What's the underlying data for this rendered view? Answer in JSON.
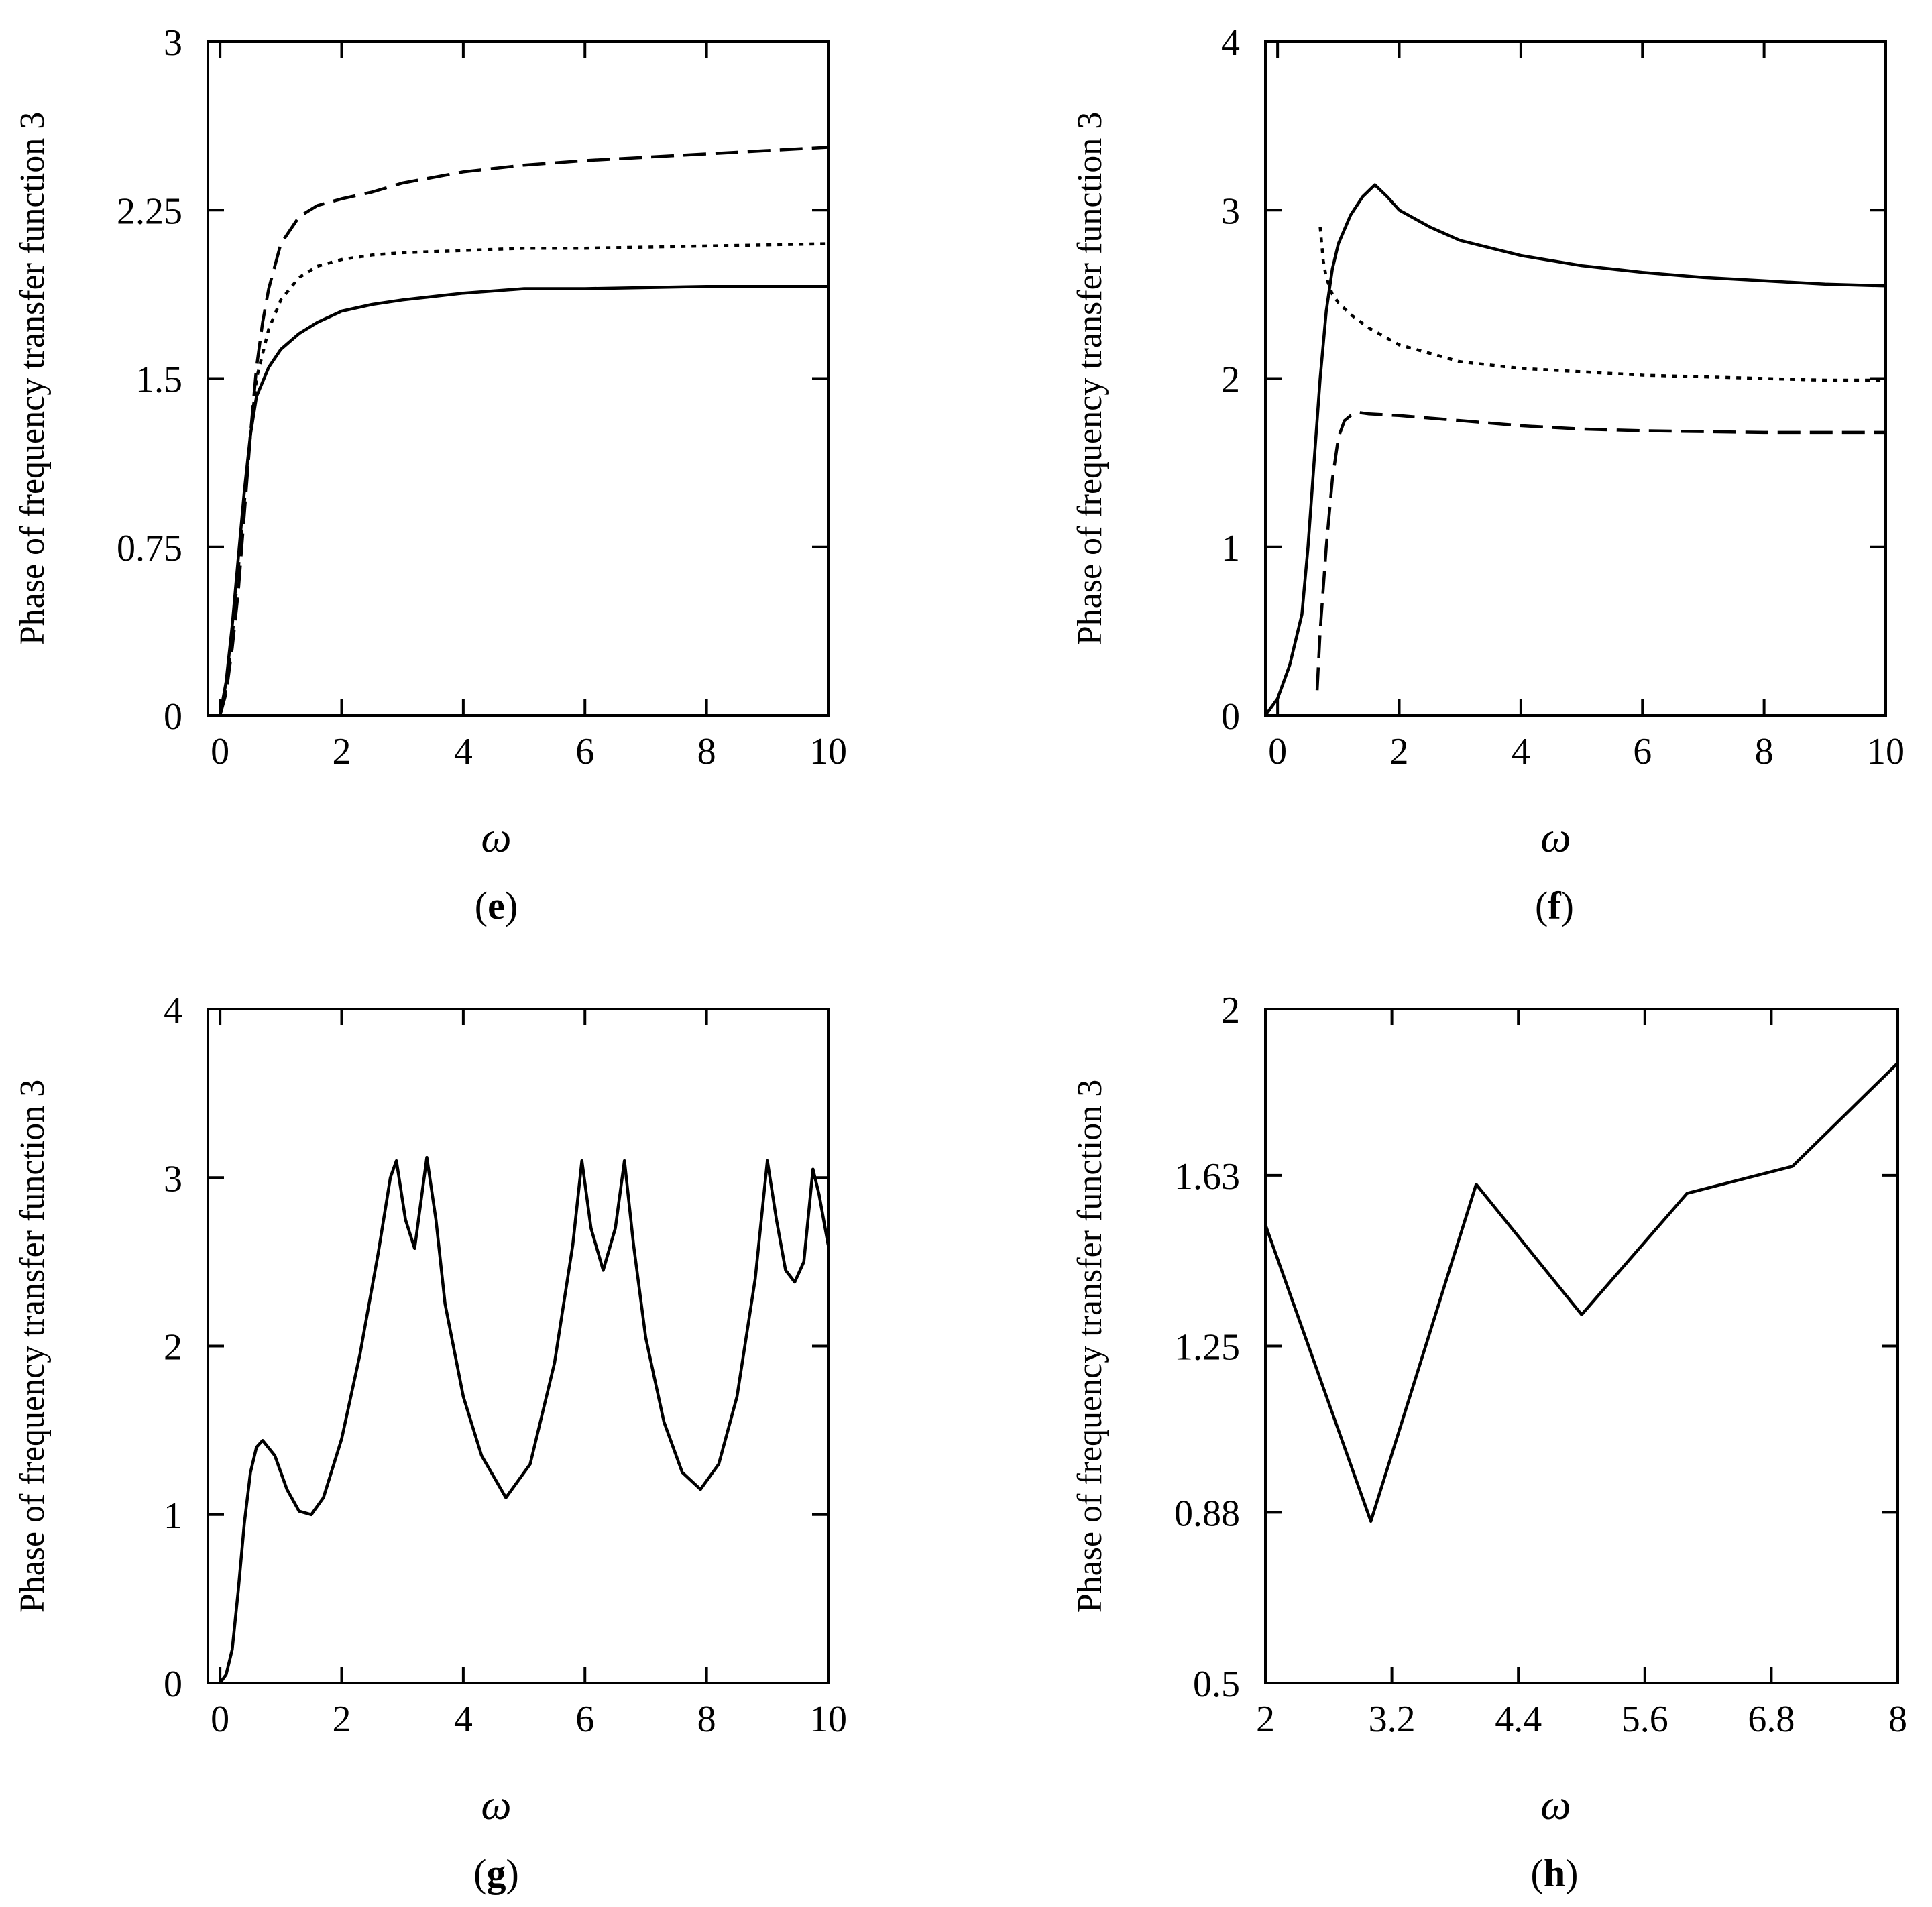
{
  "chart_data": [
    {
      "id": "e",
      "type": "line",
      "panel_label": "e",
      "ylabel": "Phase of frequency transfer function 3",
      "xlabel": "ω",
      "xlim": [
        -0.2,
        10
      ],
      "ylim": [
        0,
        3
      ],
      "xticks": [
        0,
        2,
        4,
        6,
        8,
        10
      ],
      "xtick_labels": [
        "0",
        "2",
        "4",
        "6",
        "8",
        "10"
      ],
      "yticks": [
        0,
        0.75,
        1.5,
        2.25,
        3
      ],
      "ytick_labels": [
        "0",
        "0.75",
        "1.5",
        "2.25",
        "3"
      ],
      "series": [
        {
          "name": "solid",
          "style": "solid",
          "x": [
            0,
            0.1,
            0.2,
            0.3,
            0.4,
            0.5,
            0.6,
            0.8,
            1.0,
            1.3,
            1.6,
            2.0,
            2.5,
            3,
            4,
            5,
            6,
            8,
            10
          ],
          "y": [
            0,
            0.15,
            0.4,
            0.7,
            1.0,
            1.25,
            1.42,
            1.55,
            1.63,
            1.7,
            1.75,
            1.8,
            1.83,
            1.85,
            1.88,
            1.9,
            1.9,
            1.91,
            1.91
          ]
        },
        {
          "name": "dotted",
          "style": "dotted",
          "x": [
            0,
            0.1,
            0.2,
            0.3,
            0.4,
            0.5,
            0.6,
            0.8,
            1.0,
            1.3,
            1.6,
            2.0,
            2.5,
            3,
            4,
            5,
            6,
            8,
            10
          ],
          "y": [
            0,
            0.12,
            0.35,
            0.65,
            0.95,
            1.25,
            1.5,
            1.72,
            1.85,
            1.95,
            2.0,
            2.03,
            2.05,
            2.06,
            2.07,
            2.08,
            2.08,
            2.09,
            2.1
          ]
        },
        {
          "name": "dashed",
          "style": "dashed",
          "x": [
            0,
            0.1,
            0.2,
            0.3,
            0.4,
            0.5,
            0.6,
            0.7,
            0.8,
            1.0,
            1.3,
            1.6,
            2.0,
            2.5,
            3,
            4,
            5,
            6,
            8,
            10
          ],
          "y": [
            0,
            0.1,
            0.3,
            0.55,
            0.9,
            1.25,
            1.55,
            1.75,
            1.9,
            2.1,
            2.22,
            2.27,
            2.3,
            2.33,
            2.37,
            2.42,
            2.45,
            2.47,
            2.5,
            2.53
          ]
        }
      ]
    },
    {
      "id": "f",
      "type": "line",
      "panel_label": "f",
      "ylabel": "Phase of frequency transfer function 3",
      "xlabel": "ω",
      "xlim": [
        -0.2,
        10
      ],
      "ylim": [
        0,
        4
      ],
      "xticks": [
        0,
        2,
        4,
        6,
        8,
        10
      ],
      "xtick_labels": [
        "0",
        "2",
        "4",
        "6",
        "8",
        "10"
      ],
      "yticks": [
        0,
        1,
        2,
        3,
        4
      ],
      "ytick_labels": [
        "0",
        "1",
        "2",
        "3",
        "4"
      ],
      "series": [
        {
          "name": "solid",
          "style": "solid",
          "x": [
            -0.2,
            0,
            0.2,
            0.4,
            0.5,
            0.6,
            0.7,
            0.8,
            0.9,
            1.0,
            1.2,
            1.4,
            1.6,
            1.8,
            2.0,
            2.5,
            3,
            4,
            5,
            6,
            7,
            8,
            9,
            10
          ],
          "y": [
            0,
            0.1,
            0.3,
            0.6,
            1.0,
            1.5,
            2.0,
            2.4,
            2.65,
            2.8,
            2.97,
            3.08,
            3.15,
            3.08,
            3.0,
            2.9,
            2.82,
            2.73,
            2.67,
            2.63,
            2.6,
            2.58,
            2.56,
            2.55
          ]
        },
        {
          "name": "dotted",
          "style": "dotted",
          "x": [
            0.7,
            0.75,
            0.8,
            0.9,
            1.0,
            1.2,
            1.5,
            2,
            2.5,
            3,
            4,
            5,
            6,
            7,
            8,
            9,
            10
          ],
          "y": [
            2.9,
            2.7,
            2.6,
            2.5,
            2.45,
            2.38,
            2.3,
            2.2,
            2.15,
            2.1,
            2.06,
            2.04,
            2.02,
            2.01,
            2.0,
            1.99,
            1.99
          ]
        },
        {
          "name": "dashed",
          "style": "dashed",
          "x": [
            0.65,
            0.7,
            0.8,
            0.9,
            1.0,
            1.1,
            1.2,
            1.3,
            1.5,
            2,
            3,
            4,
            5,
            6,
            8,
            10
          ],
          "y": [
            0.15,
            0.5,
            1.0,
            1.4,
            1.65,
            1.75,
            1.78,
            1.8,
            1.79,
            1.78,
            1.75,
            1.72,
            1.7,
            1.69,
            1.68,
            1.68
          ]
        }
      ]
    },
    {
      "id": "g",
      "type": "line",
      "panel_label": "g",
      "ylabel": "Phase of frequency transfer function 3",
      "xlabel": "ω",
      "xlim": [
        -0.2,
        10
      ],
      "ylim": [
        0,
        4
      ],
      "xticks": [
        0,
        2,
        4,
        6,
        8,
        10
      ],
      "xtick_labels": [
        "0",
        "2",
        "4",
        "6",
        "8",
        "10"
      ],
      "yticks": [
        0,
        1,
        2,
        3,
        4
      ],
      "ytick_labels": [
        "0",
        "1",
        "2",
        "3",
        "4"
      ],
      "series": [
        {
          "name": "solid",
          "style": "solid",
          "x": [
            0,
            0.1,
            0.2,
            0.3,
            0.4,
            0.5,
            0.6,
            0.7,
            0.9,
            1.1,
            1.3,
            1.5,
            1.7,
            2.0,
            2.3,
            2.6,
            2.8,
            2.9,
            3.05,
            3.2,
            3.4,
            3.55,
            3.7,
            4.0,
            4.3,
            4.7,
            5.1,
            5.5,
            5.8,
            5.95,
            6.1,
            6.3,
            6.5,
            6.65,
            6.8,
            7.0,
            7.3,
            7.6,
            7.9,
            8.2,
            8.5,
            8.8,
            9.0,
            9.15,
            9.3,
            9.45,
            9.6,
            9.75,
            9.85,
            10
          ],
          "y": [
            0,
            0.05,
            0.2,
            0.55,
            0.95,
            1.25,
            1.4,
            1.44,
            1.35,
            1.15,
            1.02,
            1.0,
            1.1,
            1.45,
            1.95,
            2.55,
            3.0,
            3.1,
            2.75,
            2.58,
            3.12,
            2.75,
            2.25,
            1.7,
            1.35,
            1.1,
            1.3,
            1.9,
            2.6,
            3.1,
            2.7,
            2.45,
            2.7,
            3.1,
            2.6,
            2.05,
            1.55,
            1.25,
            1.15,
            1.3,
            1.7,
            2.4,
            3.1,
            2.75,
            2.45,
            2.38,
            2.5,
            3.05,
            2.9,
            2.6
          ]
        }
      ]
    },
    {
      "id": "h",
      "type": "line",
      "panel_label": "h",
      "ylabel": "Phase of frequency transfer function 3",
      "xlabel": "ω",
      "xlim": [
        2,
        8
      ],
      "ylim": [
        0.5,
        2
      ],
      "xticks": [
        2,
        3.2,
        4.4,
        5.6,
        6.8,
        8
      ],
      "xtick_labels": [
        "2",
        "3.2",
        "4.4",
        "5.6",
        "6.8",
        "8"
      ],
      "yticks": [
        0.5,
        0.88,
        1.25,
        1.63,
        2
      ],
      "ytick_labels": [
        "0.5",
        "0.88",
        "1.25",
        "1.63",
        "2"
      ],
      "series": [
        {
          "name": "solid",
          "style": "solid",
          "x": [
            2,
            3,
            4,
            5,
            6,
            7,
            8
          ],
          "y": [
            1.52,
            0.86,
            1.61,
            1.32,
            1.59,
            1.65,
            1.88
          ]
        }
      ]
    }
  ]
}
